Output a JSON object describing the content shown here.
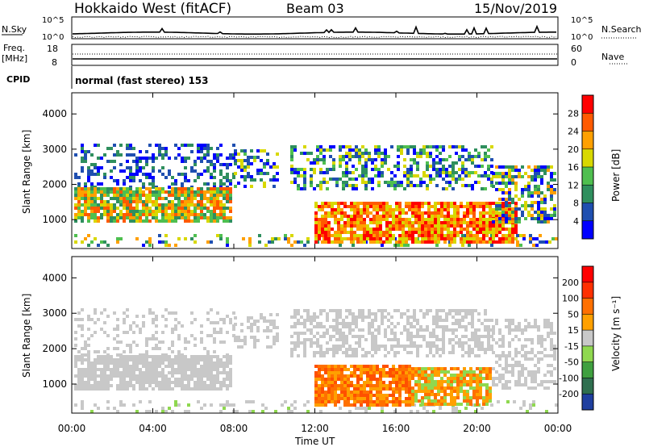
{
  "header": {
    "title": "Hokkaido West (fitACF)",
    "beam": "Beam 03",
    "date": "15/Nov/2019"
  },
  "top_panels": {
    "nsky_label": "N.Sky",
    "nsky_ticks": [
      "10^5",
      "10^0"
    ],
    "nsearch_label": "N.Search",
    "nsearch_ticks": [
      "10^5",
      "10^0"
    ],
    "freq_label_line1": "Freq.",
    "freq_label_line2": "[MHz]",
    "freq_ticks": [
      "18",
      "8"
    ],
    "nave_label": "Nave",
    "nave_ticks": [
      "60",
      "0"
    ],
    "cpid_label": "CPID",
    "cpid_text": "normal (fast stereo) 153"
  },
  "chart_data": [
    {
      "type": "heatmap",
      "name": "power",
      "xlabel": "Time UT",
      "ylabel": "Slant Range [km]",
      "y_ticks": [
        1000,
        2000,
        3000,
        4000
      ],
      "ylim": [
        180,
        4600
      ],
      "colorbar_label": "Power [dB]",
      "colorbar_ticks": [
        "28",
        "24",
        "20",
        "16",
        "12",
        "8",
        "4"
      ],
      "colorbar_colors": [
        "#0000ff",
        "#1f4fb0",
        "#2f8f5e",
        "#4fbf4f",
        "#d8d800",
        "#ffa000",
        "#ff5a00",
        "#ff0000"
      ]
    },
    {
      "type": "heatmap",
      "name": "velocity",
      "xlabel": "Time UT",
      "ylabel": "Slant Range [km]",
      "y_ticks": [
        1000,
        2000,
        3000,
        4000
      ],
      "ylim": [
        180,
        4600
      ],
      "colorbar_label": "Velocity [m s⁻¹]",
      "colorbar_ticks": [
        "200",
        "100",
        "50",
        "15",
        "-15",
        "-50",
        "-100",
        "-200"
      ],
      "colorbar_colors": [
        "#1f3f9f",
        "#2f6f4f",
        "#3fa03f",
        "#8fd84f",
        "#c8c8c8",
        "#ffa000",
        "#ff7000",
        "#ff3000",
        "#ff0000"
      ]
    }
  ],
  "x_axis": {
    "ticks": [
      "00:00",
      "04:00",
      "08:00",
      "12:00",
      "16:00",
      "20:00",
      "00:00"
    ],
    "label": "Time UT"
  }
}
